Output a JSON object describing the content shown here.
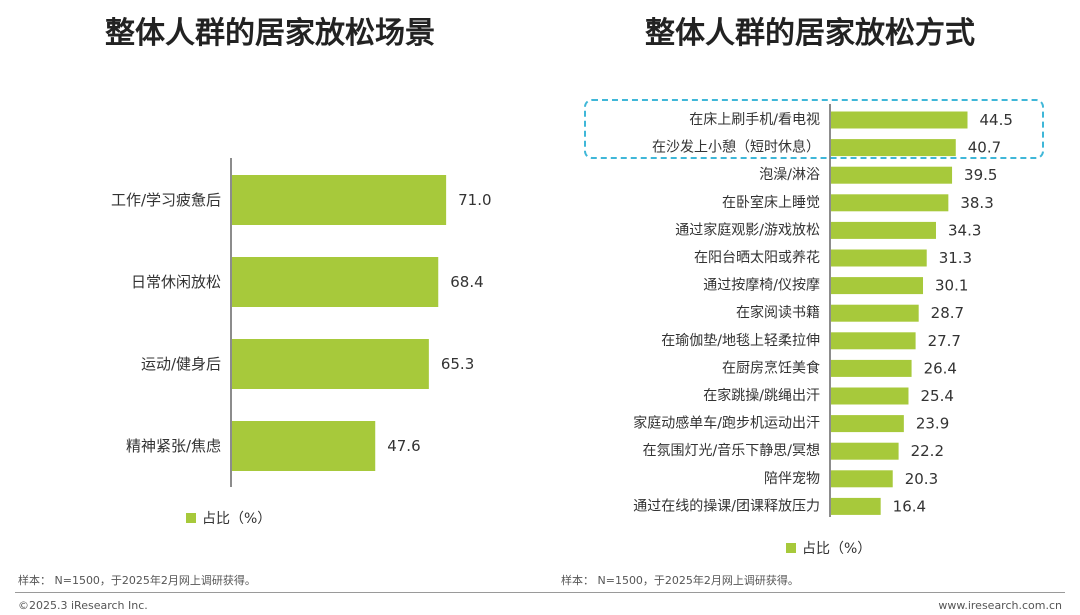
{
  "theme": {
    "bar_color": "#a7c93b",
    "axis_color": "#666666",
    "highlight_color": "#3fb7d8"
  },
  "left_title": "整体人群的居家放松场景",
  "right_title": "整体人群的居家放松方式",
  "legend_label": "占比（%）",
  "notes": {
    "left": "样本： N=1500，于2025年2月网上调研获得。",
    "right": "样本： N=1500，于2025年2月网上调研获得。"
  },
  "footer": {
    "copyright": "©2025.3 iResearch Inc.",
    "website": "www.iresearch.com.cn"
  },
  "chart_data": [
    {
      "type": "bar",
      "orientation": "horizontal",
      "title": "整体人群的居家放松场景",
      "categories": [
        "工作/学习疲惫后",
        "日常休闲放松",
        "运动/健身后",
        "精神紧张/焦虑"
      ],
      "series": [
        {
          "name": "占比（%）",
          "values": [
            71.0,
            68.4,
            65.3,
            47.6
          ]
        }
      ],
      "value_labels": [
        "71.0",
        "68.4",
        "65.3",
        "47.6"
      ],
      "xlim": [
        0,
        100
      ],
      "legend_position": "bottom"
    },
    {
      "type": "bar",
      "orientation": "horizontal",
      "title": "整体人群的居家放松方式",
      "categories": [
        "在床上刷手机/看电视",
        "在沙发上小憩（短时休息）",
        "泡澡/淋浴",
        "在卧室床上睡觉",
        "通过家庭观影/游戏放松",
        "在阳台晒太阳或养花",
        "通过按摩椅/仪按摩",
        "在家阅读书籍",
        "在瑜伽垫/地毯上轻柔拉伸",
        "在厨房烹饪美食",
        "在家跳操/跳绳出汗",
        "家庭动感单车/跑步机运动出汗",
        "在氛围灯光/音乐下静思/冥想",
        "陪伴宠物",
        "通过在线的操课/团课释放压力"
      ],
      "series": [
        {
          "name": "占比（%）",
          "values": [
            44.5,
            40.7,
            39.5,
            38.3,
            34.3,
            31.3,
            30.1,
            28.7,
            27.7,
            26.4,
            25.4,
            23.9,
            22.2,
            20.3,
            16.4
          ]
        }
      ],
      "value_labels": [
        "44.5",
        "40.7",
        "39.5",
        "38.3",
        "34.3",
        "31.3",
        "30.1",
        "28.7",
        "27.7",
        "26.4",
        "25.4",
        "23.9",
        "22.2",
        "20.3",
        "16.4"
      ],
      "xlim": [
        0,
        100
      ],
      "highlighted_categories": [
        "在床上刷手机/看电视",
        "在沙发上小憩（短时休息）"
      ],
      "legend_position": "bottom"
    }
  ]
}
